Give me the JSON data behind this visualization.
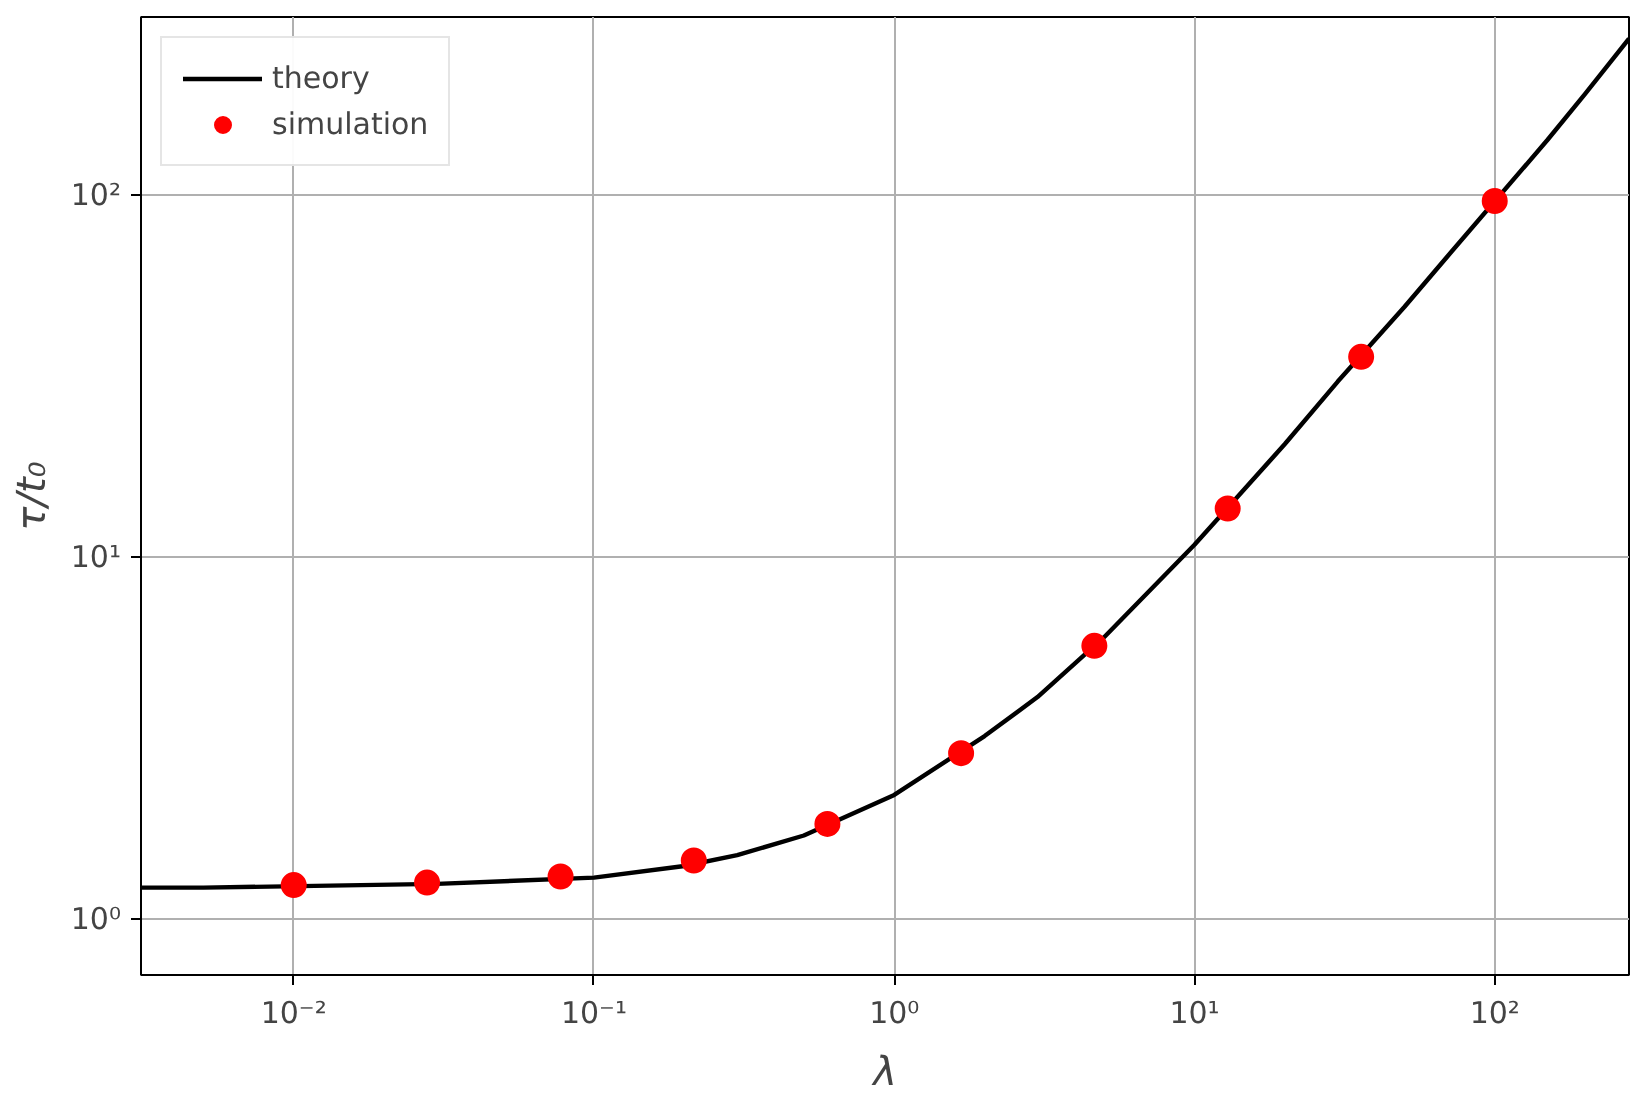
{
  "chart_data": {
    "type": "line",
    "xlabel": "λ",
    "ylabel": "τ/t₀",
    "log": "xy",
    "grid": true,
    "legend": "top left",
    "xlim": [
      0.0031,
      280
    ],
    "ylim": [
      0.7,
      310
    ],
    "xticks": [
      {
        "value": 0.01,
        "label": "10⁻²"
      },
      {
        "value": 0.1,
        "label": "10⁻¹"
      },
      {
        "value": 1,
        "label": "10⁰"
      },
      {
        "value": 10,
        "label": "10¹"
      },
      {
        "value": 100,
        "label": "10²"
      }
    ],
    "yticks": [
      {
        "value": 1,
        "label": "10⁰"
      },
      {
        "value": 10,
        "label": "10¹"
      },
      {
        "value": 100,
        "label": "10²"
      }
    ],
    "series": [
      {
        "name": "theory",
        "color": "#000000",
        "marker": "none",
        "line_style": "solid",
        "x": [
          0.0031,
          0.005,
          0.03,
          0.1,
          0.2,
          0.3,
          0.5,
          1,
          2,
          3,
          5,
          10,
          20,
          30,
          50,
          70,
          150,
          200,
          280
        ],
        "values": [
          1.22,
          1.22,
          1.25,
          1.3,
          1.4,
          1.5,
          1.7,
          2.2,
          3.2,
          4.1,
          6.0,
          10.8,
          20.5,
          30.5,
          49,
          68,
          142,
          190,
          270
        ]
      },
      {
        "name": "simulation",
        "type": "scatter",
        "color": "#ff0000",
        "marker": "circle",
        "x": [
          0.01,
          0.0278,
          0.0774,
          0.215,
          0.599,
          1.67,
          4.64,
          12.9,
          35.9,
          100
        ],
        "values": [
          1.24,
          1.26,
          1.31,
          1.45,
          1.83,
          2.87,
          5.68,
          13.6,
          35.7,
          96.2
        ]
      }
    ]
  }
}
